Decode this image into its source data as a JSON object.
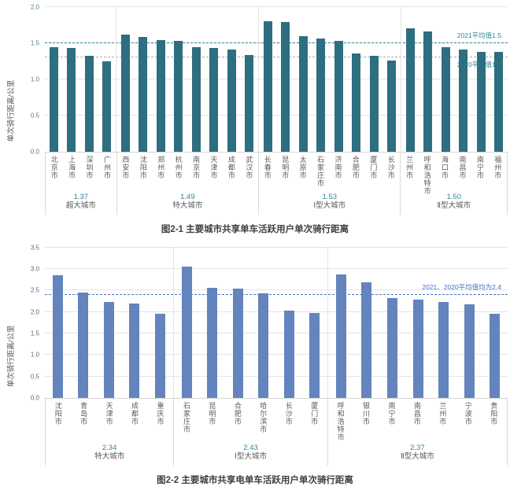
{
  "chart_data": [
    {
      "type": "bar",
      "title": "图2-1 主要城市共享单车活跃用户单次骑行距离",
      "ylabel": "单次骑行距离/公里",
      "ylim": [
        0,
        2.0
      ],
      "ytick_step": 0.5,
      "grid": true,
      "bar_color": "#2d6e80",
      "accent_color": "#31849b",
      "tick_color": "#4f7f8f",
      "city_label_color": "#595959",
      "groups": [
        {
          "name": "超大城市",
          "avg_label": "1.37",
          "cities": [
            "北京市",
            "上海市",
            "深圳市",
            "广州市"
          ],
          "values": [
            1.45,
            1.44,
            1.33,
            1.25
          ]
        },
        {
          "name": "特大城市",
          "avg_label": "1.49",
          "cities": [
            "西安市",
            "沈阳市",
            "郑州市",
            "杭州市",
            "南京市",
            "天津市",
            "成都市",
            "武汉市"
          ],
          "values": [
            1.62,
            1.59,
            1.54,
            1.53,
            1.45,
            1.43,
            1.41,
            1.34
          ]
        },
        {
          "name": "Ⅰ型大城市",
          "avg_label": "1.53",
          "cities": [
            "长春市",
            "昆明市",
            "太原市",
            "石家庄市",
            "济南市",
            "合肥市",
            "厦门市",
            "长沙市"
          ],
          "values": [
            1.8,
            1.79,
            1.6,
            1.57,
            1.53,
            1.36,
            1.33,
            1.26
          ]
        },
        {
          "name": "Ⅱ型大城市",
          "avg_label": "1.50",
          "cities": [
            "兰州市",
            "呼和浩特市",
            "海口市",
            "南昌市",
            "南宁市",
            "福州市"
          ],
          "values": [
            1.71,
            1.66,
            1.45,
            1.41,
            1.38,
            1.38
          ]
        }
      ],
      "ref_lines": [
        {
          "value": 1.5,
          "color": "#31849b",
          "style": "dashed",
          "label": "2021平均值1.5",
          "label_color": "#31849b",
          "label_pos": "above"
        },
        {
          "value": 1.3,
          "color": "#ababab",
          "style": "dashed",
          "label": "2020平均值1.3",
          "label_color": "#31849b",
          "label_pos": "below"
        }
      ]
    },
    {
      "type": "bar",
      "title": "图2-2 主要城市共享电单车活跃用户单次骑行距离",
      "ylabel": "单次骑行距离/公里",
      "ylim": [
        0,
        3.5
      ],
      "ytick_step": 0.5,
      "grid": true,
      "bar_color": "#6384bc",
      "accent_color": "#31849b",
      "tick_color": "#5a6a7a",
      "city_label_color": "#595959",
      "groups": [
        {
          "name": "特大城市",
          "avg_label": "2.34",
          "cities": [
            "沈阳市",
            "青岛市",
            "天津市",
            "成都市",
            "重庆市"
          ],
          "values": [
            2.85,
            2.46,
            2.24,
            2.2,
            1.96
          ]
        },
        {
          "name": "Ⅰ型大城市",
          "avg_label": "2.43",
          "cities": [
            "石家庄市",
            "昆明市",
            "合肥市",
            "哈尔滨市",
            "长沙市",
            "厦门市"
          ],
          "values": [
            3.05,
            2.57,
            2.55,
            2.44,
            2.04,
            1.98
          ]
        },
        {
          "name": "Ⅱ型大城市",
          "avg_label": "2.37",
          "cities": [
            "呼和浩特市",
            "银川市",
            "南宁市",
            "南昌市",
            "兰州市",
            "宁波市",
            "贵阳市"
          ],
          "values": [
            2.88,
            2.7,
            2.33,
            2.28,
            2.24,
            2.17,
            1.96
          ]
        }
      ],
      "ref_lines": [
        {
          "value": 2.4,
          "color": "#4472c4",
          "style": "dashed",
          "label": "2021、2020平均值均为2.4",
          "label_color": "#4472c4",
          "label_pos": "above"
        }
      ]
    }
  ]
}
